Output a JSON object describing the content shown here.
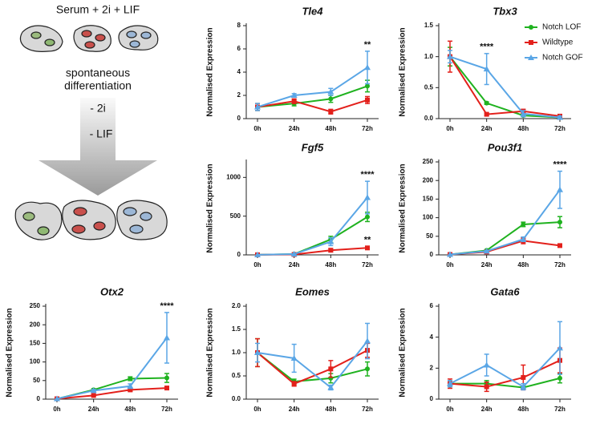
{
  "diagram": {
    "top_label": "Serum + 2i + LIF",
    "arrow_label": [
      "spontaneous",
      "differentiation"
    ],
    "steps": [
      "- 2i",
      "- LIF"
    ]
  },
  "chart_data": [
    {
      "type": "line",
      "title": "Tle4",
      "ylabel": "Normalised Expression",
      "categories": [
        "0h",
        "24h",
        "48h",
        "72h"
      ],
      "ylim": [
        0,
        8
      ],
      "yticks": [
        0,
        2,
        4,
        6,
        8
      ],
      "series": [
        {
          "color": "#1fb21f",
          "marker": "circle",
          "values": [
            1,
            1.3,
            1.7,
            2.8
          ],
          "errors": [
            0.3,
            0.2,
            0.3,
            0.5
          ]
        },
        {
          "color": "#e3201b",
          "marker": "square",
          "values": [
            1,
            1.5,
            0.6,
            1.6
          ],
          "errors": [
            0.3,
            0.2,
            0.2,
            0.3
          ]
        },
        {
          "color": "#5aa6e6",
          "marker": "triangle",
          "values": [
            1,
            2.0,
            2.3,
            4.4
          ],
          "errors": [
            0.3,
            0.15,
            0.3,
            1.4
          ]
        }
      ],
      "annotations": [
        {
          "text": "**",
          "x": "72h",
          "series": 2
        }
      ]
    },
    {
      "type": "line",
      "title": "Tbx3",
      "ylabel": "Normalised Expression",
      "categories": [
        "0h",
        "24h",
        "48h",
        "72h"
      ],
      "ylim": [
        0,
        1.5
      ],
      "yticks": [
        {
          "value": 0,
          "label": "0.0"
        },
        0.5,
        {
          "value": 1,
          "label": "1.0"
        },
        1.5
      ],
      "legend": "upper right",
      "series": [
        {
          "name": "Notch LOF",
          "color": "#1fb21f",
          "marker": "circle",
          "values": [
            1,
            0.25,
            0.05,
            0.02
          ],
          "errors": [
            0.15,
            0.02,
            0.02,
            0.01
          ]
        },
        {
          "name": "Wildtype",
          "color": "#e3201b",
          "marker": "square",
          "values": [
            1,
            0.07,
            0.12,
            0.04
          ],
          "errors": [
            0.25,
            0.02,
            0.03,
            0.02
          ]
        },
        {
          "name": "Notch GOF",
          "color": "#5aa6e6",
          "marker": "triangle",
          "values": [
            1,
            0.8,
            0.08,
            0.02
          ],
          "errors": [
            0.1,
            0.25,
            0.05,
            0.02
          ]
        }
      ],
      "annotations": [
        {
          "text": "****",
          "x": "24h",
          "series": 2
        }
      ]
    },
    {
      "type": "line",
      "title": "Fgf5",
      "ylabel": "Normalised Expression",
      "categories": [
        "0h",
        "24h",
        "48h",
        "72h"
      ],
      "ylim": [
        0,
        1200
      ],
      "yticks": [
        0,
        500,
        1000
      ],
      "series": [
        {
          "color": "#1fb21f",
          "marker": "circle",
          "values": [
            1,
            10,
            200,
            490
          ],
          "errors": [
            0,
            5,
            40,
            60
          ]
        },
        {
          "color": "#e3201b",
          "marker": "square",
          "values": [
            1,
            5,
            60,
            90
          ],
          "errors": [
            0,
            2,
            20,
            20
          ]
        },
        {
          "color": "#5aa6e6",
          "marker": "triangle",
          "values": [
            1,
            10,
            170,
            740
          ],
          "errors": [
            0,
            5,
            50,
            210
          ]
        }
      ],
      "annotations": [
        {
          "text": "****",
          "x": "72h",
          "series": 2
        },
        {
          "text": "**",
          "x": "72h",
          "series": 1
        }
      ]
    },
    {
      "type": "line",
      "title": "Pou3f1",
      "ylabel": "Normalised Expression",
      "categories": [
        "0h",
        "24h",
        "48h",
        "72h"
      ],
      "ylim": [
        0,
        250
      ],
      "yticks": [
        0,
        50,
        100,
        150,
        200,
        250
      ],
      "series": [
        {
          "color": "#1fb21f",
          "marker": "circle",
          "values": [
            1,
            12,
            82,
            88
          ],
          "errors": [
            0,
            2,
            6,
            15
          ]
        },
        {
          "color": "#e3201b",
          "marker": "square",
          "values": [
            1,
            8,
            38,
            25
          ],
          "errors": [
            0,
            2,
            8,
            3
          ]
        },
        {
          "color": "#5aa6e6",
          "marker": "triangle",
          "values": [
            1,
            10,
            42,
            175
          ],
          "errors": [
            0,
            2,
            6,
            50
          ]
        }
      ],
      "annotations": [
        {
          "text": "****",
          "x": "72h",
          "series": 2
        }
      ]
    },
    {
      "type": "line",
      "title": "Otx2",
      "ylabel": "Normalised Expression",
      "categories": [
        "0h",
        "24h",
        "48h",
        "72h"
      ],
      "ylim": [
        0,
        250
      ],
      "yticks": [
        0,
        50,
        100,
        150,
        200,
        250
      ],
      "series": [
        {
          "color": "#1fb21f",
          "marker": "circle",
          "values": [
            1,
            25,
            55,
            57
          ],
          "errors": [
            0,
            3,
            5,
            12
          ]
        },
        {
          "color": "#e3201b",
          "marker": "square",
          "values": [
            1,
            10,
            25,
            30
          ],
          "errors": [
            0,
            2,
            4,
            4
          ]
        },
        {
          "color": "#5aa6e6",
          "marker": "triangle",
          "values": [
            1,
            23,
            35,
            165
          ],
          "errors": [
            0,
            3,
            6,
            68
          ]
        }
      ],
      "annotations": [
        {
          "text": "****",
          "x": "72h",
          "series": 2
        }
      ]
    },
    {
      "type": "line",
      "title": "Eomes",
      "ylabel": "Normalised Expression",
      "categories": [
        "0h",
        "24h",
        "48h",
        "72h"
      ],
      "ylim": [
        0,
        2
      ],
      "yticks": [
        {
          "value": 0,
          "label": "0.0"
        },
        0.5,
        {
          "value": 1,
          "label": "1.0"
        },
        1.5,
        {
          "value": 2,
          "label": "2.0"
        }
      ],
      "series": [
        {
          "color": "#1fb21f",
          "marker": "circle",
          "values": [
            1,
            0.38,
            0.45,
            0.65
          ],
          "errors": [
            0.3,
            0.05,
            0.1,
            0.15
          ]
        },
        {
          "color": "#e3201b",
          "marker": "square",
          "values": [
            1,
            0.33,
            0.65,
            1.05
          ],
          "errors": [
            0.3,
            0.05,
            0.18,
            0.15
          ]
        },
        {
          "color": "#5aa6e6",
          "marker": "triangle",
          "values": [
            1,
            0.88,
            0.25,
            1.25
          ],
          "errors": [
            0.2,
            0.3,
            0.05,
            0.38
          ]
        }
      ]
    },
    {
      "type": "line",
      "title": "Gata6",
      "ylabel": "Normalised Expression",
      "categories": [
        "0h",
        "24h",
        "48h",
        "72h"
      ],
      "ylim": [
        0,
        6
      ],
      "yticks": [
        0,
        2,
        4,
        6
      ],
      "series": [
        {
          "color": "#1fb21f",
          "marker": "circle",
          "values": [
            1,
            1,
            0.75,
            1.35
          ],
          "errors": [
            0.2,
            0.2,
            0.1,
            0.3
          ]
        },
        {
          "color": "#e3201b",
          "marker": "square",
          "values": [
            1,
            0.8,
            1.4,
            2.5
          ],
          "errors": [
            0.3,
            0.3,
            0.8,
            0.8
          ]
        },
        {
          "color": "#5aa6e6",
          "marker": "triangle",
          "values": [
            1,
            2.2,
            0.8,
            3.3
          ],
          "errors": [
            0.2,
            0.7,
            0.2,
            1.7
          ]
        }
      ]
    }
  ]
}
